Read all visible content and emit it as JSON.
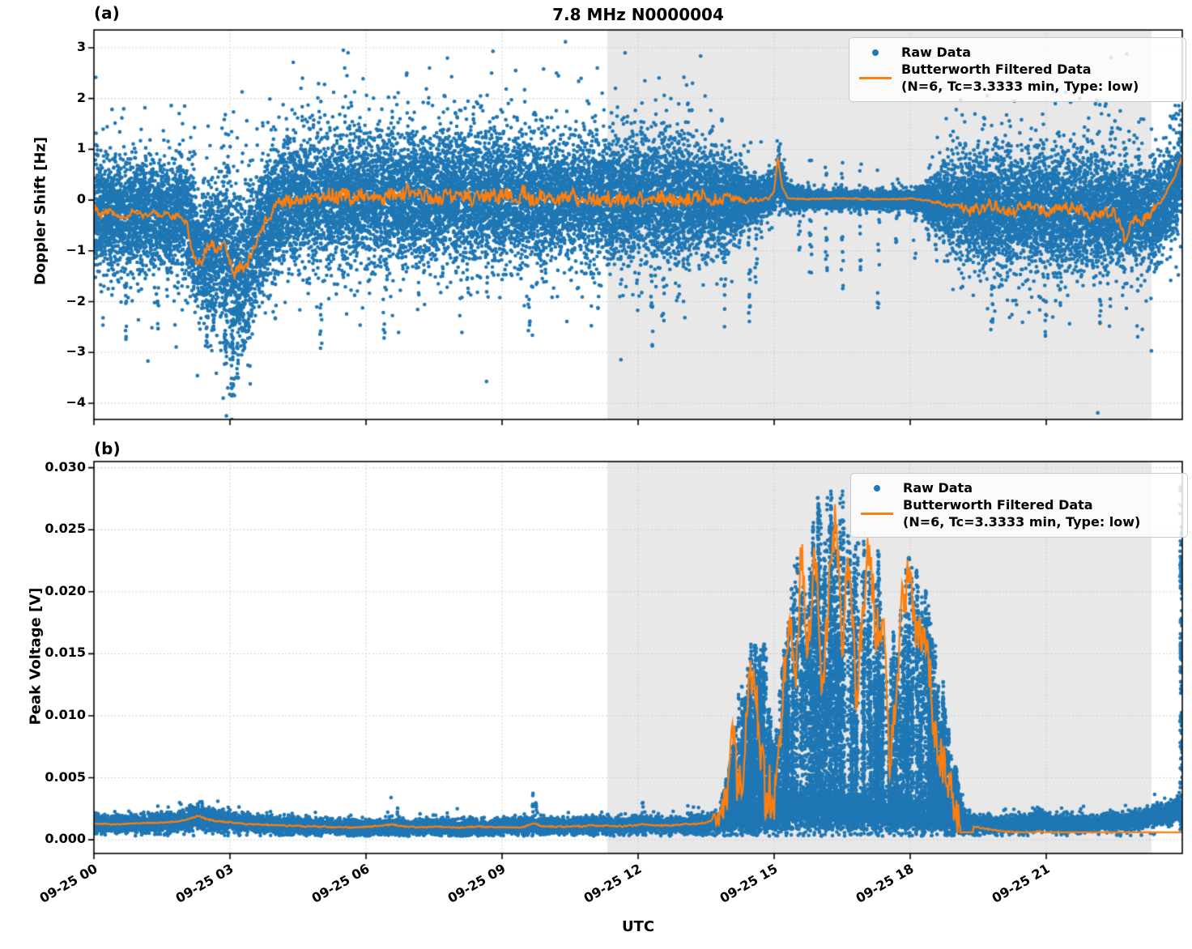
{
  "figure": {
    "title": "7.8 MHz N0000004",
    "xlabel": "UTC",
    "panel_a_label": "(a)",
    "panel_b_label": "(b)"
  },
  "legend": {
    "position": "upper right",
    "raw_label": "Raw Data",
    "filtered_label_line1": "Butterworth Filtered Data",
    "filtered_label_line2": "(N=6, Tc=3.3333 min, Type: low)"
  },
  "colors": {
    "raw": "#1f77b4",
    "filtered": "#ff7f0e",
    "night_shade": "#e8e8e8",
    "grid": "#c4c4c4",
    "spine": "#000000",
    "background": "#ffffff"
  },
  "x_axis": {
    "lim_hours": [
      0,
      24
    ],
    "tick_hours": [
      0,
      3,
      6,
      9,
      12,
      15,
      18,
      21
    ],
    "tick_labels": [
      "09-25 00",
      "09-25 03",
      "09-25 06",
      "09-25 09",
      "09-25 12",
      "09-25 15",
      "09-25 18",
      "09-25 21"
    ],
    "night_shade_hours": [
      11.32,
      23.32
    ]
  },
  "chart_data": [
    {
      "panel": "a",
      "type": "scatter",
      "ylabel": "Doppler Shift [Hz]",
      "ylim": [
        -4.32,
        3.35
      ],
      "ytick_values": [
        3,
        2,
        1,
        0,
        -1,
        -2,
        -3,
        -4
      ],
      "ytick_labels": [
        "3",
        "2",
        "1",
        "0",
        "−1",
        "−2",
        "−3",
        "−4"
      ],
      "grid": true,
      "series": [
        {
          "name": "Raw Data",
          "kind": "scatter"
        },
        {
          "name": "Butterworth Filtered Data (N=6, Tc=3.3333 min, Type: low)",
          "kind": "line"
        }
      ],
      "raw_envelope": {
        "t": [
          0,
          1,
          2,
          2.1,
          2.3,
          2.5,
          2.7,
          2.9,
          3.1,
          3.3,
          3.6,
          3.9,
          4.3,
          5,
          7,
          9,
          11,
          13,
          13.6,
          14.1,
          14.5,
          14.8,
          15.0,
          15.1,
          15.3,
          15.6,
          16,
          17,
          18,
          18.3,
          18.6,
          19,
          19.5,
          20,
          21,
          22,
          23,
          23.3,
          23.6,
          23.8,
          24
        ],
        "center": [
          -0.25,
          -0.28,
          -0.3,
          -0.5,
          -1.05,
          -0.95,
          -0.9,
          -1.0,
          -1.35,
          -1.3,
          -0.75,
          -0.25,
          -0.02,
          0.02,
          0.08,
          0.05,
          0.03,
          0.02,
          0.0,
          0.0,
          0.0,
          0.05,
          0.2,
          0.5,
          0.05,
          0.02,
          0.02,
          0.02,
          0.02,
          0.0,
          -0.05,
          -0.1,
          -0.15,
          -0.2,
          -0.2,
          -0.25,
          -0.3,
          -0.25,
          -0.1,
          0.2,
          0.6
        ],
        "spread": [
          0.5,
          0.5,
          0.55,
          0.6,
          0.55,
          0.6,
          0.65,
          0.75,
          0.8,
          0.8,
          0.65,
          0.6,
          0.58,
          0.6,
          0.6,
          0.6,
          0.6,
          0.58,
          0.5,
          0.35,
          0.22,
          0.18,
          0.2,
          0.25,
          0.12,
          0.08,
          0.07,
          0.07,
          0.08,
          0.15,
          0.3,
          0.45,
          0.5,
          0.55,
          0.55,
          0.55,
          0.5,
          0.45,
          0.45,
          0.45,
          0.5
        ]
      },
      "outlier_strings": [
        [
          0.7,
          -2.8,
          -1.6,
          10
        ],
        [
          1.4,
          -2.9,
          -1.8,
          8
        ],
        [
          2.5,
          -2.9,
          -1.8,
          14
        ],
        [
          2.62,
          -2.6,
          -1.9,
          10
        ],
        [
          2.9,
          -3.3,
          -2.0,
          22
        ],
        [
          3.05,
          -3.9,
          -2.2,
          28
        ],
        [
          3.17,
          -3.6,
          -2.0,
          20
        ],
        [
          3.3,
          -3.0,
          -2.0,
          12
        ],
        [
          5.0,
          -3.0,
          -2.0,
          8
        ],
        [
          6.4,
          -2.9,
          -1.9,
          6
        ],
        [
          9.6,
          -2.6,
          -1.8,
          6
        ],
        [
          12.3,
          -2.9,
          -1.2,
          10
        ],
        [
          12.55,
          -2.4,
          -1.0,
          8
        ],
        [
          13.9,
          -2.8,
          -0.5,
          12
        ],
        [
          14.45,
          -2.5,
          -0.4,
          14
        ],
        [
          14.6,
          -1.8,
          -0.3,
          10
        ],
        [
          15.55,
          -1.2,
          0.6,
          10
        ],
        [
          15.8,
          -2.1,
          0.8,
          14
        ],
        [
          16.15,
          -1.4,
          0.7,
          12
        ],
        [
          16.5,
          -2.0,
          0.9,
          16
        ],
        [
          16.9,
          -1.6,
          0.8,
          12
        ],
        [
          17.3,
          -2.2,
          0.7,
          14
        ],
        [
          17.7,
          -1.2,
          0.6,
          9
        ],
        [
          18.1,
          -1.5,
          0.6,
          8
        ],
        [
          19.8,
          -2.6,
          -1.7,
          8
        ],
        [
          21.0,
          -2.7,
          -1.8,
          8
        ],
        [
          22.2,
          -2.5,
          -1.7,
          6
        ]
      ],
      "extreme_points": [
        [
          5.5,
          2.95
        ],
        [
          5.53,
          2.6
        ],
        [
          5.58,
          2.45
        ],
        [
          8.8,
          2.93
        ],
        [
          8.77,
          2.5
        ],
        [
          12.15,
          2.35
        ],
        [
          4.6,
          2.4
        ],
        [
          6.9,
          2.5
        ],
        [
          7.4,
          2.6
        ],
        [
          9.3,
          2.55
        ],
        [
          10.2,
          2.5
        ],
        [
          11.1,
          2.6
        ],
        [
          11.5,
          2.2
        ],
        [
          13.2,
          2.3
        ],
        [
          2.0,
          1.85
        ],
        [
          19.7,
          2.05
        ],
        [
          20.3,
          1.95
        ],
        [
          21.2,
          1.9
        ],
        [
          22.3,
          1.85
        ],
        [
          2.85,
          -3.9
        ],
        [
          2.95,
          -3.7
        ],
        [
          3.1,
          -3.85
        ]
      ],
      "filtered": {
        "t": [
          0,
          0.15,
          0.3,
          0.5,
          0.7,
          0.9,
          1.1,
          1.3,
          1.5,
          1.7,
          1.9,
          2.05,
          2.2,
          2.35,
          2.5,
          2.6,
          2.75,
          2.9,
          3.0,
          3.1,
          3.2,
          3.3,
          3.45,
          3.6,
          3.8,
          4.0,
          4.25,
          4.5,
          5,
          5.5,
          6,
          6.5,
          7,
          7.5,
          8,
          8.5,
          9,
          9.5,
          10,
          10.5,
          11,
          11.5,
          12,
          12.5,
          13,
          13.5,
          14,
          14.5,
          14.9,
          15.0,
          15.08,
          15.18,
          15.3,
          15.6,
          16,
          16.5,
          17,
          17.5,
          18,
          18.3,
          18.6,
          19,
          19.4,
          19.8,
          20.2,
          20.6,
          21,
          21.4,
          21.8,
          22.2,
          22.5,
          22.65,
          22.75,
          22.9,
          23.1,
          23.3,
          23.5,
          23.7,
          23.85,
          24
        ],
        "v": [
          -0.15,
          -0.3,
          -0.22,
          -0.28,
          -0.33,
          -0.25,
          -0.3,
          -0.27,
          -0.32,
          -0.28,
          -0.33,
          -0.45,
          -1.2,
          -1.25,
          -0.95,
          -0.8,
          -1.0,
          -0.95,
          -1.15,
          -1.5,
          -1.35,
          -1.45,
          -1.1,
          -0.8,
          -0.45,
          -0.12,
          0.0,
          -0.05,
          0.05,
          0.1,
          0.0,
          0.08,
          0.15,
          0.02,
          0.1,
          0.0,
          0.06,
          0.1,
          0.04,
          0.1,
          0.03,
          0.0,
          0.05,
          0.0,
          0.04,
          0.0,
          0.02,
          0.0,
          0.04,
          0.2,
          0.85,
          0.25,
          0.04,
          0.02,
          0.02,
          0.03,
          0.02,
          0.02,
          0.03,
          0.0,
          -0.05,
          -0.12,
          -0.18,
          -0.1,
          -0.2,
          -0.12,
          -0.22,
          -0.15,
          -0.25,
          -0.3,
          -0.25,
          -0.55,
          -0.85,
          -0.35,
          -0.4,
          -0.25,
          -0.05,
          0.25,
          0.5,
          0.85
        ],
        "jitter_t": [
          0,
          2,
          2.1,
          4,
          4.5,
          13.4,
          14.6,
          15.25,
          18.3,
          18.9,
          19.2,
          23.2,
          23.5,
          24
        ],
        "jitter_amp": [
          0.09,
          0.09,
          0.13,
          0.19,
          0.2,
          0.2,
          0.06,
          0.018,
          0.018,
          0.05,
          0.14,
          0.14,
          0.06,
          0.04
        ]
      }
    },
    {
      "panel": "b",
      "type": "scatter",
      "ylabel": "Peak Voltage [V]",
      "ylim": [
        -0.0011,
        0.0305
      ],
      "ytick_values": [
        0.03,
        0.025,
        0.02,
        0.015,
        0.01,
        0.005,
        0.0
      ],
      "ytick_labels": [
        "0.030",
        "0.025",
        "0.020",
        "0.015",
        "0.010",
        "0.005",
        "0.000"
      ],
      "grid": true,
      "series": [
        {
          "name": "Raw Data",
          "kind": "scatter"
        },
        {
          "name": "Butterworth Filtered Data (N=6, Tc=3.3333 min, Type: low)",
          "kind": "line"
        }
      ],
      "baseline_envelope": {
        "t": [
          0,
          0.5,
          1.0,
          1.5,
          1.9,
          2.15,
          2.3,
          2.5,
          2.8,
          3.2,
          3.8,
          4.5,
          6,
          8,
          10,
          12,
          13,
          13.5,
          13.8,
          14.5,
          15.5,
          16.5,
          17.5,
          18.5,
          19.0,
          19.3,
          19.6,
          20,
          20.5,
          20.85,
          21.1,
          21.5,
          22,
          22.5,
          23,
          23.4,
          23.7,
          23.9,
          24
        ],
        "center": [
          0.0013,
          0.00125,
          0.0013,
          0.00135,
          0.0015,
          0.0018,
          0.0019,
          0.0016,
          0.0015,
          0.00135,
          0.0012,
          0.0011,
          0.001,
          0.001,
          0.0011,
          0.0012,
          0.0012,
          0.00125,
          0.0015,
          0.002,
          0.0025,
          0.0025,
          0.0022,
          0.002,
          0.0018,
          0.0014,
          0.0012,
          0.0012,
          0.00125,
          0.0016,
          0.0013,
          0.00125,
          0.0013,
          0.0014,
          0.0016,
          0.0019,
          0.0022,
          0.0024,
          0.0026
        ],
        "spread": [
          0.00032,
          0.0003,
          0.0003,
          0.00035,
          0.0004,
          0.00045,
          0.0005,
          0.00042,
          0.0004,
          0.00035,
          0.0003,
          0.0003,
          0.00028,
          0.00028,
          0.0003,
          0.0003,
          0.0003,
          0.00032,
          0.0004,
          0.0007,
          0.0008,
          0.0008,
          0.0008,
          0.0007,
          0.0006,
          0.0004,
          0.00032,
          0.0003,
          0.0003,
          0.0004,
          0.00032,
          0.0003,
          0.0003,
          0.00032,
          0.00035,
          0.0004,
          0.00042,
          0.00045,
          0.0005
        ]
      },
      "burst": {
        "t_range": [
          13.8,
          19.25
        ],
        "n_strings": 380,
        "hi_t": [
          13.8,
          14.0,
          14.2,
          14.5,
          14.8,
          15.0,
          15.2,
          15.5,
          15.8,
          16.1,
          16.4,
          16.7,
          17.0,
          17.3,
          17.5,
          17.7,
          18.0,
          18.3,
          18.6,
          18.9,
          19.1,
          19.25
        ],
        "hi_v": [
          0.003,
          0.006,
          0.012,
          0.016,
          0.018,
          0.008,
          0.016,
          0.024,
          0.027,
          0.0285,
          0.029,
          0.028,
          0.026,
          0.024,
          0.012,
          0.02,
          0.024,
          0.022,
          0.016,
          0.009,
          0.004,
          0.002
        ]
      },
      "spike_strings": [
        [
          2.3,
          0.0027,
          8
        ],
        [
          4.2,
          0.0022,
          3
        ],
        [
          6.55,
          0.0035,
          6
        ],
        [
          6.7,
          0.003,
          5
        ],
        [
          7.8,
          0.0022,
          3
        ],
        [
          9.68,
          0.0042,
          10
        ],
        [
          9.75,
          0.0032,
          6
        ],
        [
          11.2,
          0.0025,
          4
        ],
        [
          12.1,
          0.003,
          6
        ],
        [
          12.35,
          0.0028,
          5
        ],
        [
          13.1,
          0.0028,
          5
        ],
        [
          20.0,
          0.0024,
          4
        ],
        [
          20.85,
          0.0028,
          6
        ],
        [
          23.96,
          0.0285,
          70
        ],
        [
          23.99,
          0.027,
          50
        ]
      ],
      "filtered": {
        "t": [
          0,
          0.4,
          0.8,
          1.2,
          1.6,
          1.9,
          2.1,
          2.3,
          2.45,
          2.7,
          3.0,
          3.4,
          3.8,
          4.2,
          4.7,
          5.2,
          5.7,
          6.2,
          6.55,
          6.9,
          7.3,
          7.7,
          8.1,
          8.6,
          9.1,
          9.5,
          9.68,
          9.9,
          10.3,
          10.7,
          11.1,
          11.5,
          11.9,
          12.1,
          12.4,
          12.8,
          13.1,
          13.4,
          13.6,
          13.8,
          13.95,
          14.1,
          14.25,
          14.4,
          14.55,
          14.7,
          14.85,
          15.0,
          15.15,
          15.3,
          15.45,
          15.6,
          15.75,
          15.9,
          16.05,
          16.2,
          16.35,
          16.5,
          16.65,
          16.8,
          16.95,
          17.1,
          17.25,
          17.4,
          17.55,
          17.7,
          17.85,
          18.0,
          18.15,
          18.3,
          18.45,
          18.6,
          18.75,
          18.9,
          19.05,
          19.2,
          19.4,
          19.7,
          20,
          20.3,
          20.6,
          20.85,
          21.05,
          21.3,
          21.6,
          22,
          22.4,
          22.8,
          23.1,
          23.4,
          23.65,
          23.85,
          23.93,
          23.97,
          24
        ],
        "v": [
          0.0013,
          0.00125,
          0.0013,
          0.00135,
          0.0014,
          0.0015,
          0.0017,
          0.00195,
          0.0017,
          0.0015,
          0.0014,
          0.00125,
          0.0012,
          0.00115,
          0.0011,
          0.00105,
          0.001,
          0.0011,
          0.00125,
          0.00105,
          0.001,
          0.00105,
          0.001,
          0.00105,
          0.001,
          0.00105,
          0.00135,
          0.0011,
          0.00105,
          0.0011,
          0.00115,
          0.0011,
          0.00115,
          0.0013,
          0.00115,
          0.0012,
          0.00125,
          0.0013,
          0.0015,
          0.002,
          0.0035,
          0.007,
          0.004,
          0.011,
          0.015,
          0.007,
          0.0035,
          0.004,
          0.009,
          0.018,
          0.012,
          0.022,
          0.015,
          0.024,
          0.013,
          0.02,
          0.026,
          0.016,
          0.022,
          0.011,
          0.02,
          0.024,
          0.015,
          0.018,
          0.006,
          0.012,
          0.02,
          0.022,
          0.016,
          0.018,
          0.012,
          0.008,
          0.005,
          0.003,
          0.002,
          0.0014,
          0.00125,
          0.0012,
          0.0012,
          0.00125,
          0.0013,
          0.00165,
          0.0013,
          0.00125,
          0.00125,
          0.0013,
          0.0014,
          0.0016,
          0.00175,
          0.002,
          0.0022,
          0.0024,
          0.0026,
          0.009,
          0.0245
        ],
        "jitter_t": [
          0,
          13.6,
          14.0,
          19.1,
          19.4,
          22,
          23.3,
          23.9,
          24
        ],
        "jitter_amp": [
          6e-05,
          8e-05,
          0.003,
          0.003,
          8e-05,
          8e-05,
          0.00012,
          0.0002,
          0.0005
        ]
      }
    }
  ]
}
